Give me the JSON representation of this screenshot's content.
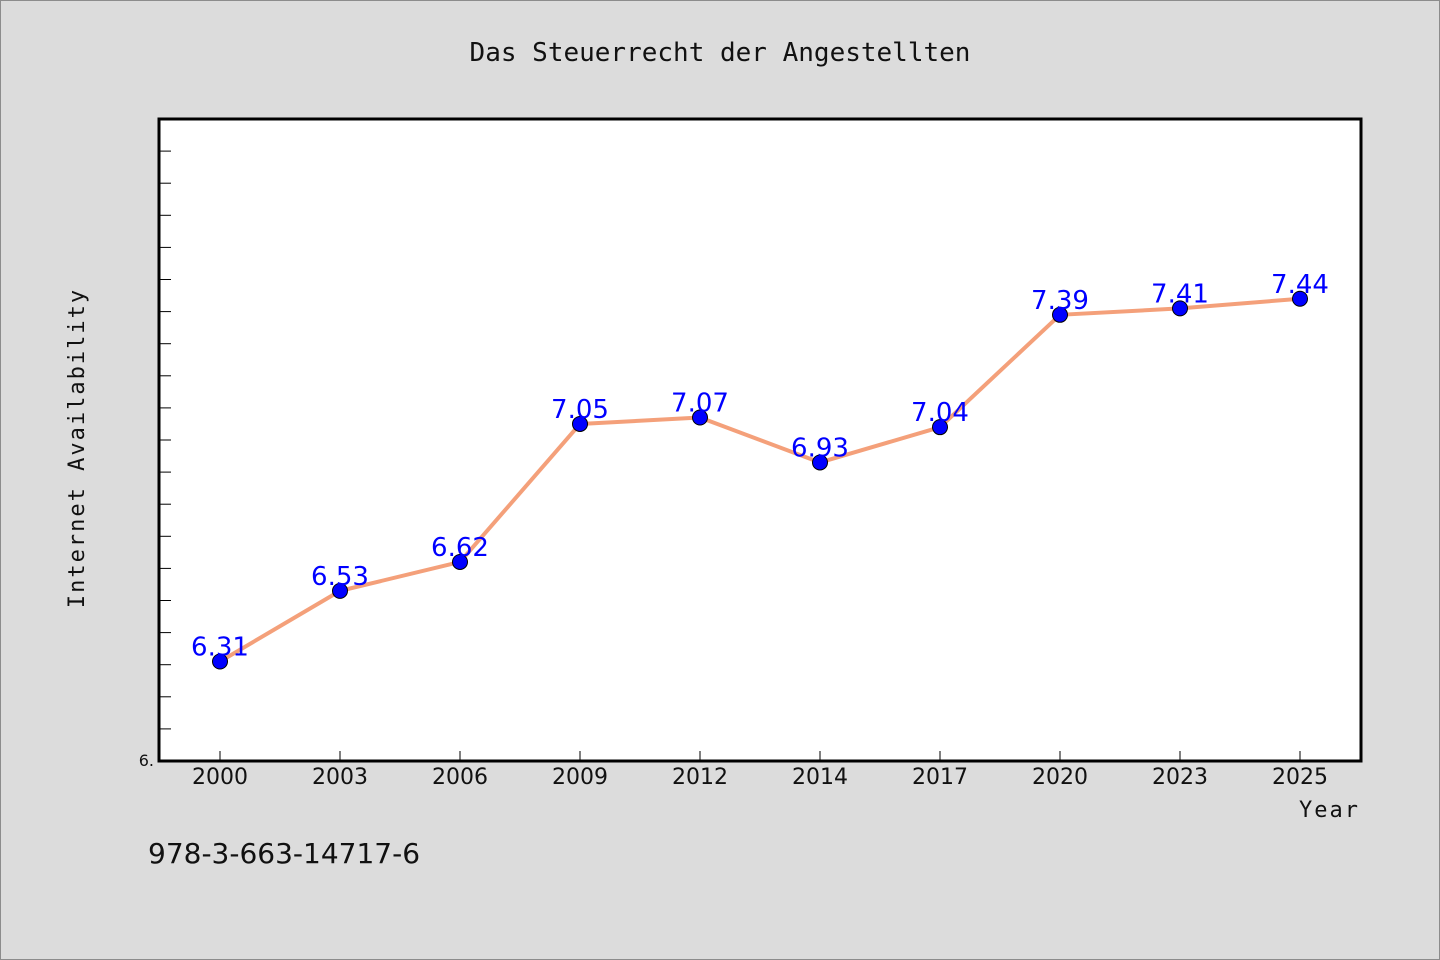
{
  "chart_data": {
    "type": "line",
    "title": "Das Steuerrecht der Angestellten",
    "xlabel": "Year",
    "ylabel": "Internet Availability",
    "categories": [
      "2000",
      "2003",
      "2006",
      "2009",
      "2012",
      "2014",
      "2017",
      "2020",
      "2023",
      "2025"
    ],
    "series": [
      {
        "values": [
          6.31,
          6.53,
          6.62,
          7.05,
          7.07,
          6.93,
          7.04,
          7.39,
          7.41,
          7.44
        ]
      }
    ],
    "data_labels": [
      "6.31",
      "6.53",
      "6.62",
      "7.05",
      "7.07",
      "6.93",
      "7.04",
      "7.39",
      "7.41",
      "7.44"
    ],
    "y_tick_label": "6.",
    "ylim": [
      6.0,
      8.0
    ],
    "grid": false,
    "line_color": "#f4a07a",
    "marker_color": "#0000ff",
    "label_color": "#0000ff"
  },
  "caption": "978-3-663-14717-6"
}
